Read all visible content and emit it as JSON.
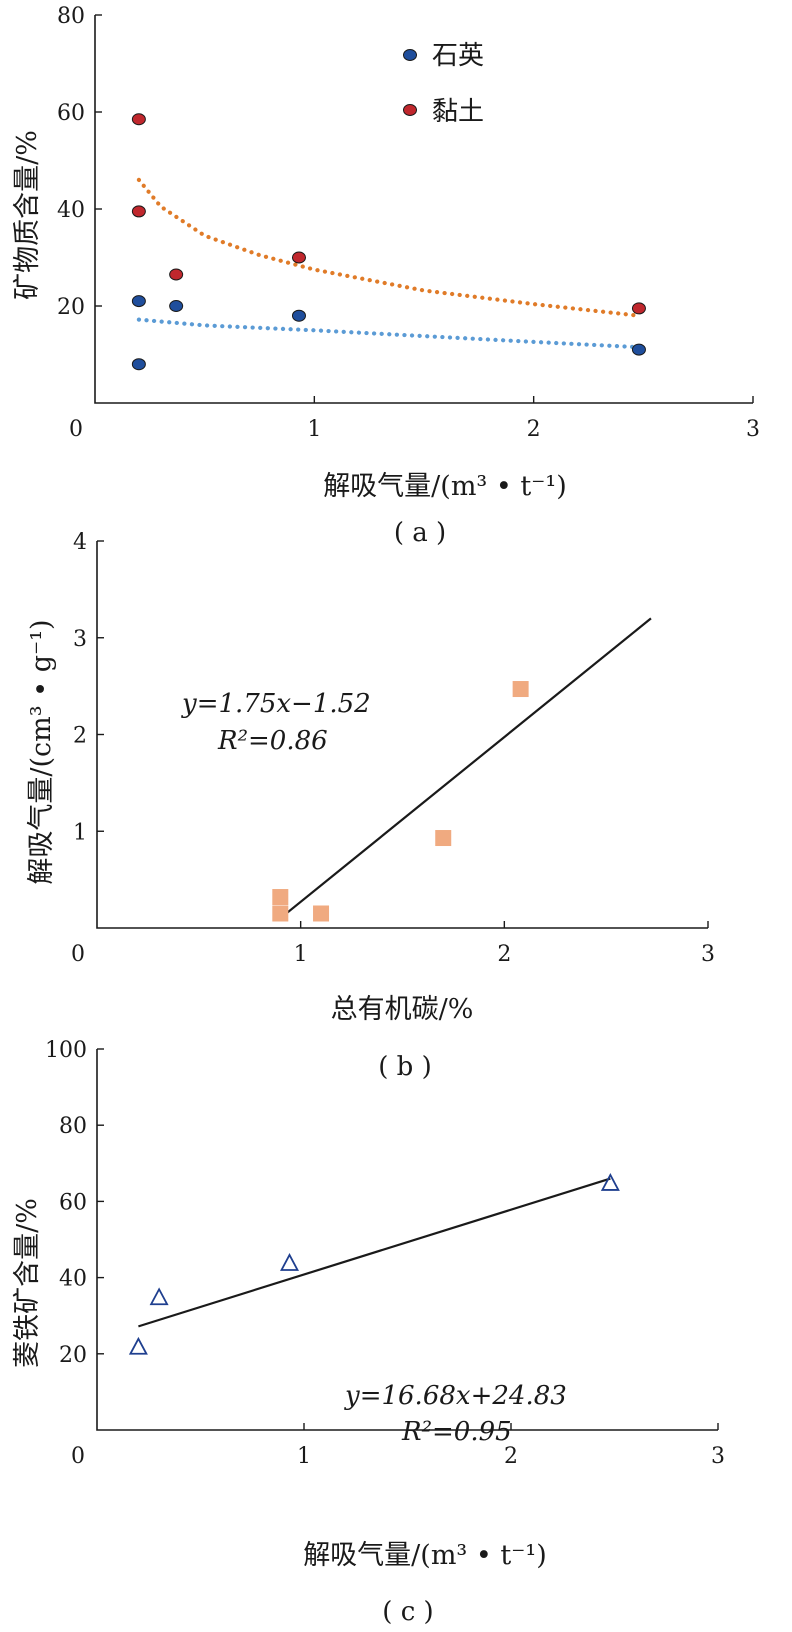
{
  "chart_data": [
    {
      "type": "scatter",
      "panel_label": "( a )",
      "title": "",
      "xlabel": "解吸气量/(m³ • t⁻¹)",
      "ylabel": "矿物质含量/%",
      "xlim": [
        0,
        3
      ],
      "ylim": [
        0,
        80
      ],
      "xticks": [
        "0",
        "1",
        "2",
        "3"
      ],
      "yticks": [
        "20",
        "40",
        "60",
        "80"
      ],
      "legend_position": "top-center",
      "series": [
        {
          "name": "石英",
          "color": "#1f4e9c",
          "marker": "circle",
          "points": [
            [
              0.2,
              21
            ],
            [
              0.2,
              8
            ],
            [
              0.37,
              20
            ],
            [
              0.93,
              18
            ],
            [
              2.48,
              11
            ]
          ],
          "trend": {
            "kind": "log",
            "color": "#5b9bd5",
            "points": [
              [
                0.2,
                17.2
              ],
              [
                0.5,
                16.0
              ],
              [
                1.0,
                15.0
              ],
              [
                1.5,
                13.8
              ],
              [
                2.0,
                12.6
              ],
              [
                2.48,
                11.5
              ]
            ]
          }
        },
        {
          "name": "黏土",
          "color": "#c0272d",
          "marker": "circle",
          "points": [
            [
              0.2,
              58.5
            ],
            [
              0.2,
              39.5
            ],
            [
              0.37,
              26.5
            ],
            [
              0.93,
              30
            ],
            [
              2.48,
              19.5
            ]
          ],
          "trend": {
            "kind": "power",
            "color": "#e07b28",
            "points": [
              [
                0.2,
                46
              ],
              [
                0.3,
                40.5
              ],
              [
                0.5,
                34.5
              ],
              [
                0.75,
                30.5
              ],
              [
                1.0,
                27.5
              ],
              [
                1.5,
                23.2
              ],
              [
                2.0,
                20.4
              ],
              [
                2.48,
                18
              ]
            ]
          }
        }
      ]
    },
    {
      "type": "scatter",
      "panel_label": "( b )",
      "title": "",
      "xlabel": "总有机碳/%",
      "ylabel": "解吸气量/(cm³ • g⁻¹)",
      "xlim": [
        0,
        3
      ],
      "ylim": [
        0,
        4
      ],
      "xticks": [
        "0",
        "1",
        "2",
        "3"
      ],
      "yticks": [
        "1",
        "2",
        "3",
        "4"
      ],
      "equation": [
        "y=1.75x−1.52",
        "R²=0.86"
      ],
      "series": [
        {
          "name": "",
          "color": "#f0aa80",
          "marker": "square",
          "points": [
            [
              0.9,
              0.32
            ],
            [
              0.9,
              0.15
            ],
            [
              1.1,
              0.15
            ],
            [
              1.7,
              0.93
            ],
            [
              2.08,
              2.47
            ]
          ],
          "fit": {
            "color": "#1a1a1a",
            "from": [
              0.9,
              0.1
            ],
            "to": [
              2.72,
              3.2
            ]
          }
        }
      ]
    },
    {
      "type": "scatter",
      "panel_label": "( c )",
      "title": "",
      "xlabel": "解吸气量/(m³ • t⁻¹)",
      "ylabel": "菱铁矿含量/%",
      "xlim": [
        0,
        3
      ],
      "ylim": [
        0,
        100
      ],
      "xticks": [
        "0",
        "1",
        "2",
        "3"
      ],
      "yticks": [
        "20",
        "40",
        "60",
        "80",
        "100"
      ],
      "equation": [
        "y=16.68x+24.83",
        "R²=0.95"
      ],
      "series": [
        {
          "name": "",
          "color": "#1f3f8f",
          "marker": "triangle",
          "points": [
            [
              0.2,
              21.5
            ],
            [
              0.3,
              34.5
            ],
            [
              0.93,
              43.5
            ],
            [
              2.48,
              64.5
            ]
          ],
          "fit": {
            "color": "#1a1a1a",
            "from": [
              0.2,
              27.2
            ],
            "to": [
              2.48,
              66
            ]
          }
        }
      ]
    }
  ]
}
